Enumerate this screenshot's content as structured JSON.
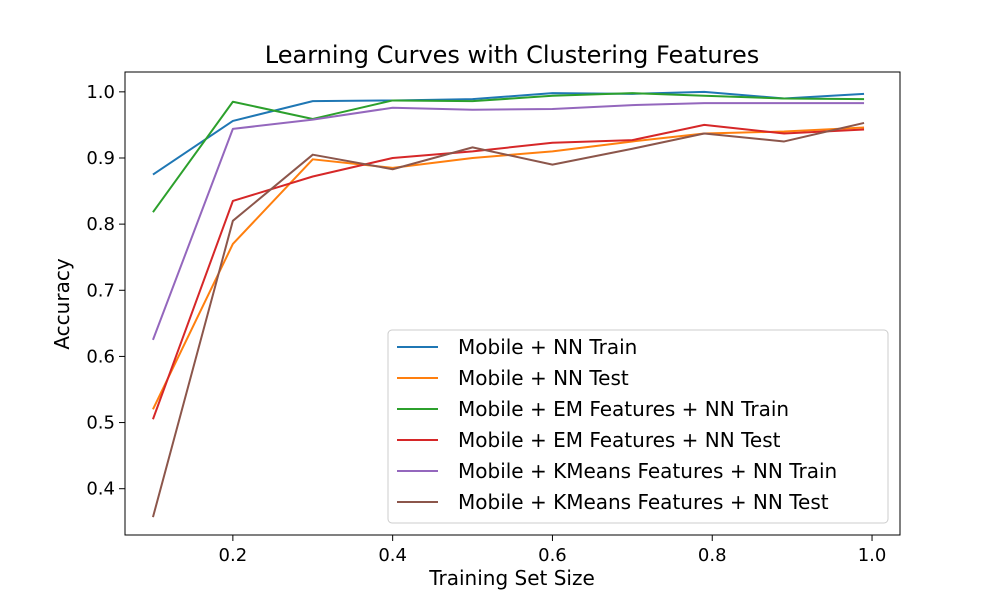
{
  "chart_data": {
    "type": "line",
    "title": "Learning Curves with Clustering Features",
    "xlabel": "Training Set Size",
    "ylabel": "Accuracy",
    "xlim": [
      0.065,
      1.035
    ],
    "ylim": [
      0.33,
      1.03
    ],
    "xticks": [
      {
        "value": 0.2,
        "label": "0.2"
      },
      {
        "value": 0.4,
        "label": "0.4"
      },
      {
        "value": 0.6,
        "label": "0.6"
      },
      {
        "value": 0.8,
        "label": "0.8"
      },
      {
        "value": 1.0,
        "label": "1.0"
      }
    ],
    "yticks": [
      {
        "value": 0.4,
        "label": "0.4"
      },
      {
        "value": 0.5,
        "label": "0.5"
      },
      {
        "value": 0.6,
        "label": "0.6"
      },
      {
        "value": 0.7,
        "label": "0.7"
      },
      {
        "value": 0.8,
        "label": "0.8"
      },
      {
        "value": 0.9,
        "label": "0.9"
      },
      {
        "value": 1.0,
        "label": "1.0"
      }
    ],
    "grid": false,
    "legend_position": "bottom-right",
    "x": [
      0.1,
      0.2,
      0.3,
      0.4,
      0.5,
      0.6,
      0.7,
      0.79,
      0.89,
      0.99
    ],
    "series": [
      {
        "name": "Mobile + NN Train",
        "color": "#1f77b4",
        "values": [
          0.875,
          0.956,
          0.986,
          0.987,
          0.989,
          0.998,
          0.997,
          1.0,
          0.99,
          0.997
        ]
      },
      {
        "name": "Mobile + NN Test",
        "color": "#ff7f0e",
        "values": [
          0.52,
          0.77,
          0.898,
          0.885,
          0.9,
          0.91,
          0.925,
          0.937,
          0.94,
          0.946
        ]
      },
      {
        "name": "Mobile + EM Features + NN Train",
        "color": "#2ca02c",
        "values": [
          0.818,
          0.985,
          0.959,
          0.987,
          0.986,
          0.994,
          0.998,
          0.994,
          0.99,
          0.989
        ]
      },
      {
        "name": "Mobile + EM Features + NN Test",
        "color": "#d62728",
        "values": [
          0.505,
          0.835,
          0.872,
          0.9,
          0.91,
          0.923,
          0.927,
          0.95,
          0.937,
          0.943
        ]
      },
      {
        "name": "Mobile + KMeans Features + NN Train",
        "color": "#9467bd",
        "values": [
          0.625,
          0.944,
          0.958,
          0.976,
          0.973,
          0.974,
          0.98,
          0.983,
          0.983,
          0.983
        ]
      },
      {
        "name": "Mobile + KMeans Features + NN Test",
        "color": "#8c564b",
        "values": [
          0.357,
          0.805,
          0.905,
          0.883,
          0.916,
          0.89,
          0.914,
          0.937,
          0.925,
          0.953
        ]
      }
    ]
  }
}
